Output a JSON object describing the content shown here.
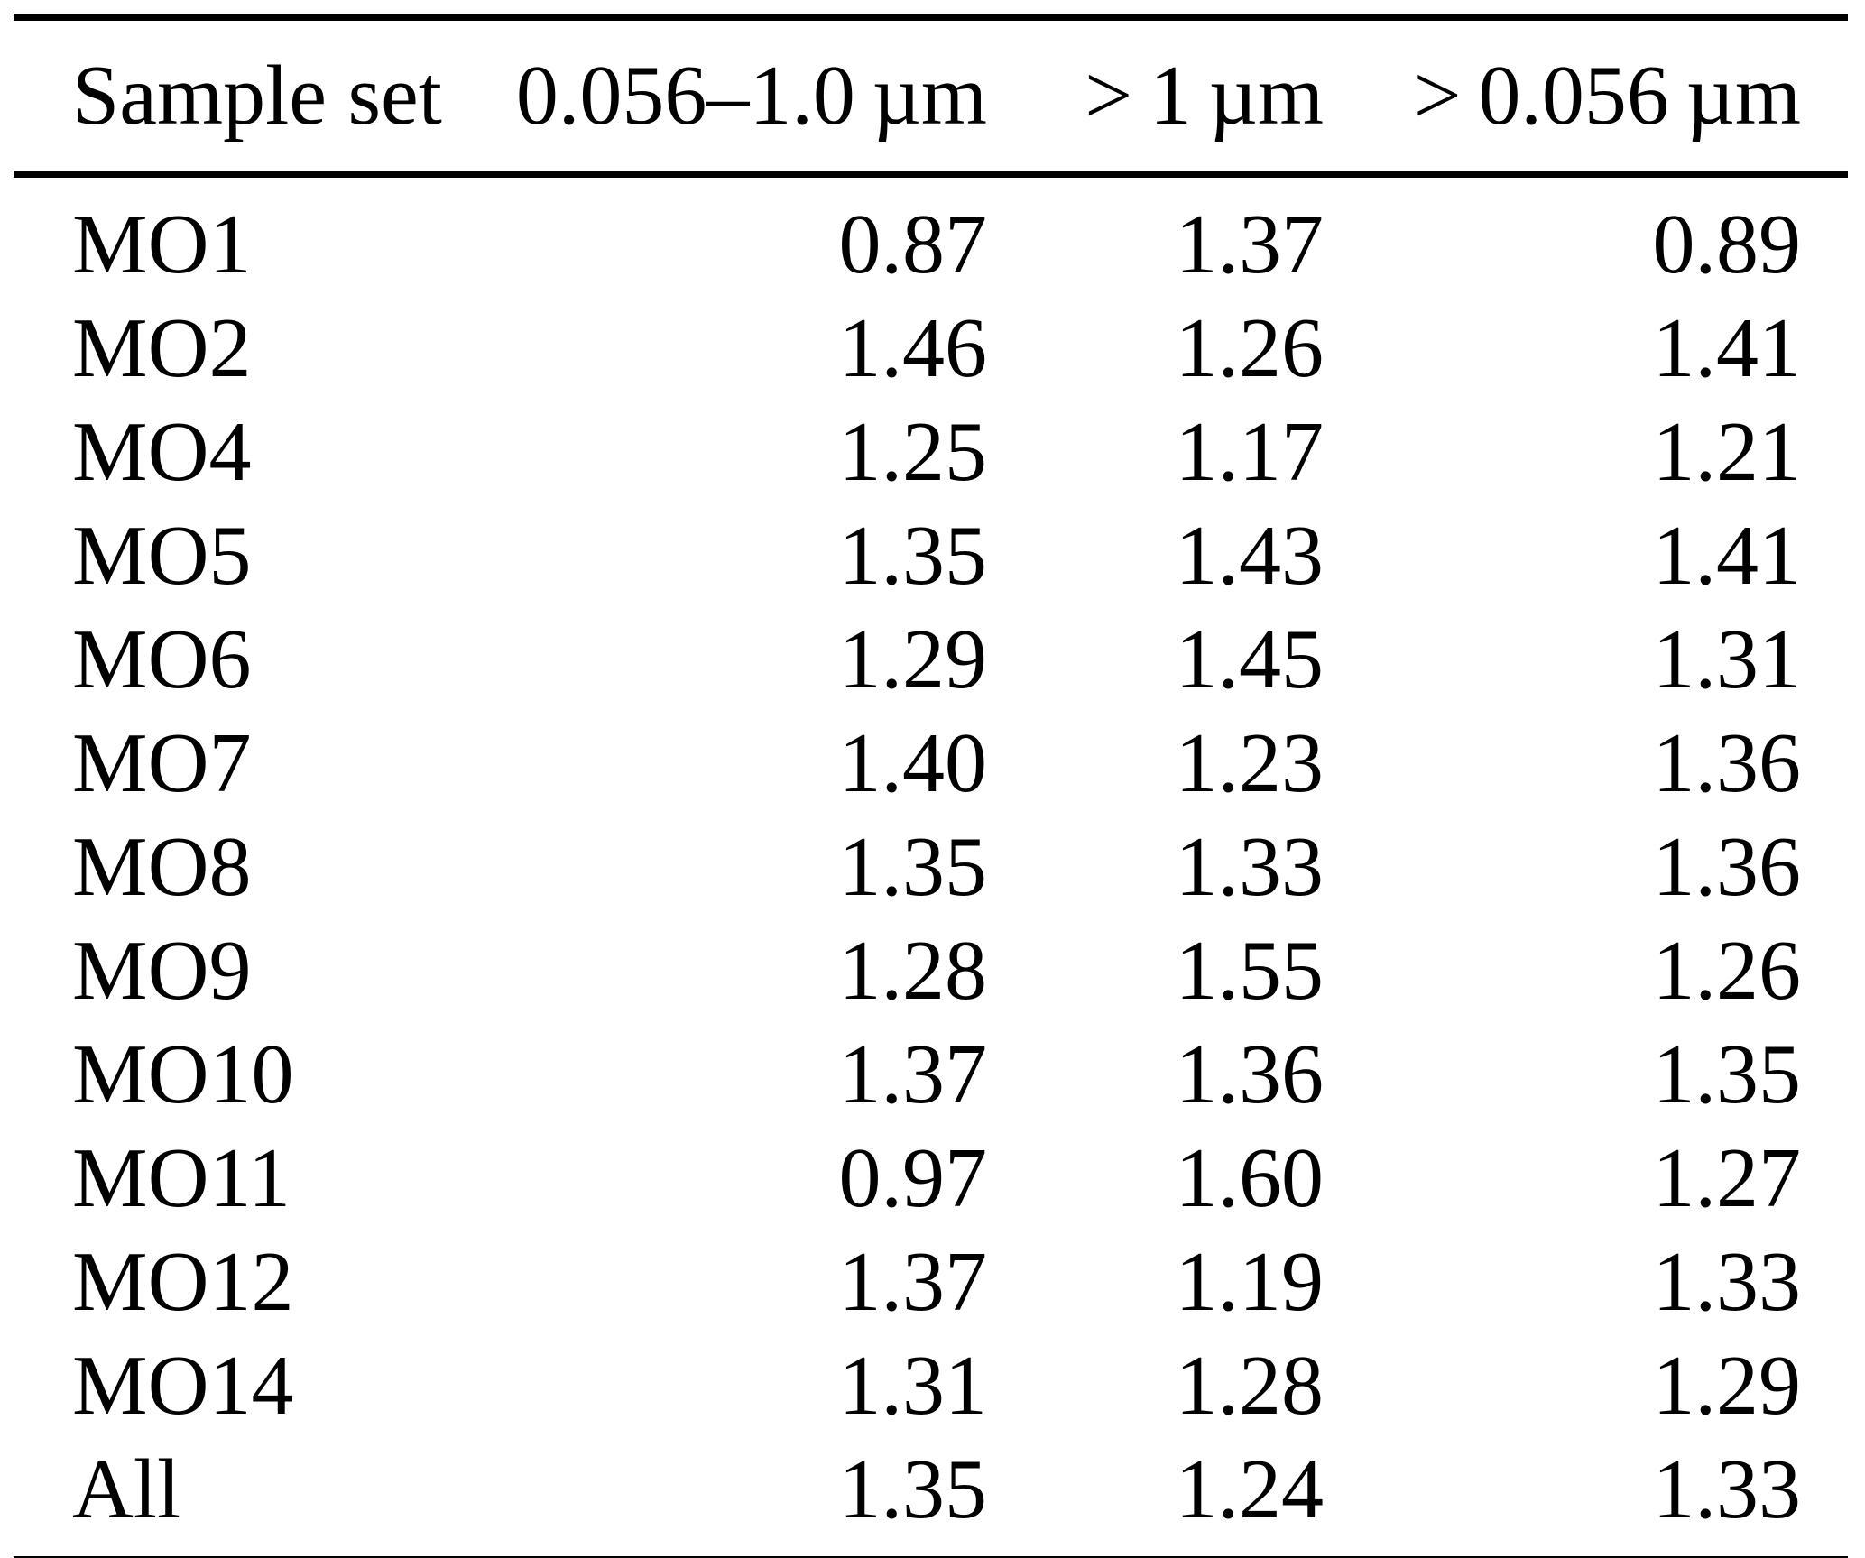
{
  "table": {
    "description": "Sample set size-fraction statistics table",
    "columns": [
      {
        "label": "Sample set"
      },
      {
        "label": "0.056–1.0 µm"
      },
      {
        "label": "> 1 µm"
      },
      {
        "label": "> 0.056 µm"
      }
    ],
    "rows": [
      {
        "label": "MO1",
        "values": [
          "0.87",
          "1.37",
          "0.89"
        ]
      },
      {
        "label": "MO2",
        "values": [
          "1.46",
          "1.26",
          "1.41"
        ]
      },
      {
        "label": "MO4",
        "values": [
          "1.25",
          "1.17",
          "1.21"
        ]
      },
      {
        "label": "MO5",
        "values": [
          "1.35",
          "1.43",
          "1.41"
        ]
      },
      {
        "label": "MO6",
        "values": [
          "1.29",
          "1.45",
          "1.31"
        ]
      },
      {
        "label": "MO7",
        "values": [
          "1.40",
          "1.23",
          "1.36"
        ]
      },
      {
        "label": "MO8",
        "values": [
          "1.35",
          "1.33",
          "1.36"
        ]
      },
      {
        "label": "MO9",
        "values": [
          "1.28",
          "1.55",
          "1.26"
        ]
      },
      {
        "label": "MO10",
        "values": [
          "1.37",
          "1.36",
          "1.35"
        ]
      },
      {
        "label": "MO11",
        "values": [
          "0.97",
          "1.60",
          "1.27"
        ]
      },
      {
        "label": "MO12",
        "values": [
          "1.37",
          "1.19",
          "1.33"
        ]
      },
      {
        "label": "MO14",
        "values": [
          "1.31",
          "1.28",
          "1.29"
        ]
      },
      {
        "label": "All",
        "values": [
          "1.35",
          "1.24",
          "1.33"
        ]
      }
    ],
    "colors": {
      "text": "#000000",
      "rule": "#000000",
      "background": "#ffffff"
    }
  }
}
